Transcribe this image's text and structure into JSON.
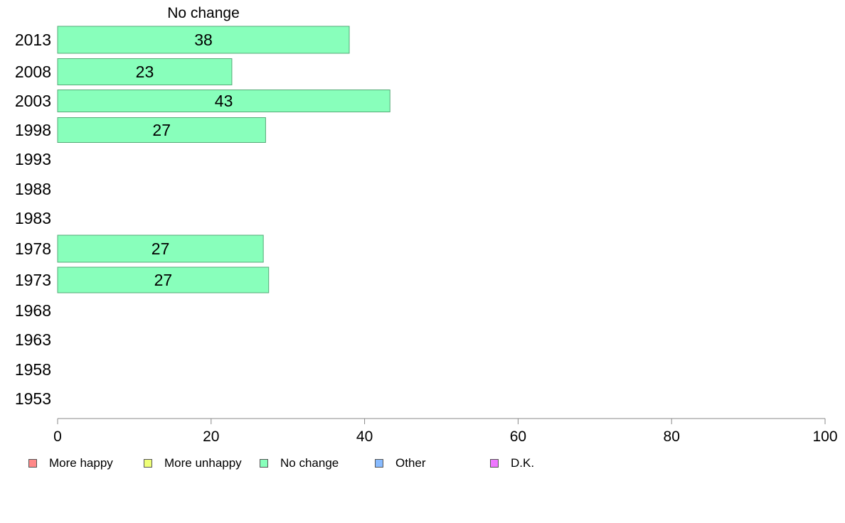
{
  "chart_data": {
    "type": "bar",
    "orientation": "horizontal",
    "panel_title": "No change",
    "categories": [
      "2013",
      "2008",
      "2003",
      "1998",
      "1993",
      "1988",
      "1983",
      "1978",
      "1973",
      "1968",
      "1963",
      "1958",
      "1953"
    ],
    "series": [
      {
        "name": "No change",
        "color": "#88ffbb",
        "values": [
          38,
          23,
          43,
          27,
          null,
          null,
          null,
          27,
          27,
          null,
          null,
          null,
          null
        ],
        "raw_values": [
          38.0,
          22.7,
          43.3,
          27.1,
          null,
          null,
          null,
          26.8,
          27.5,
          null,
          null,
          null,
          null
        ]
      }
    ],
    "xlim": [
      0,
      100
    ],
    "x_ticks": [
      "0",
      "20",
      "40",
      "60",
      "80",
      "100"
    ],
    "grid": false,
    "legend_position": "bottom"
  },
  "legend": {
    "items": [
      {
        "label": "More happy",
        "color": "#ff8888"
      },
      {
        "label": "More unhappy",
        "color": "#eeff77"
      },
      {
        "label": "No change",
        "color": "#88ffbb"
      },
      {
        "label": "Other",
        "color": "#88bbff"
      },
      {
        "label": "D.K.",
        "color": "#ee77ff"
      }
    ]
  }
}
